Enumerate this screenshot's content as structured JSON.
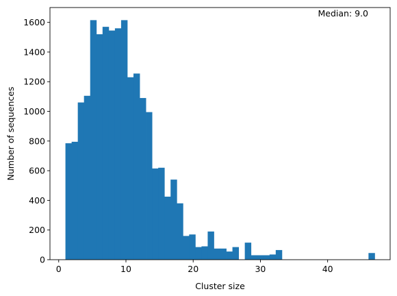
{
  "chart_data": {
    "type": "bar",
    "subtype": "histogram",
    "title": "",
    "xlabel": "Cluster size",
    "ylabel": "Number of sequences",
    "xlim": [
      -1.3,
      49.3
    ],
    "ylim": [
      0,
      1700
    ],
    "xticks": [
      0,
      10,
      20,
      30,
      40
    ],
    "yticks": [
      0,
      200,
      400,
      600,
      800,
      1000,
      1200,
      1400,
      1600
    ],
    "bin_start": 1,
    "bin_width": 0.92,
    "values": [
      785,
      795,
      1060,
      1105,
      1615,
      1520,
      1570,
      1545,
      1560,
      1615,
      1230,
      1255,
      1090,
      995,
      615,
      620,
      425,
      540,
      380,
      160,
      170,
      85,
      90,
      190,
      75,
      75,
      55,
      85,
      0,
      115,
      30,
      30,
      30,
      35,
      65,
      0,
      0,
      0,
      0,
      0,
      0,
      0,
      0,
      0,
      0,
      0,
      0,
      0,
      0,
      45
    ],
    "annotation": "Median: 9.0",
    "grid": false,
    "colors": {
      "bar": "#1f77b4",
      "axis": "#000000"
    }
  }
}
